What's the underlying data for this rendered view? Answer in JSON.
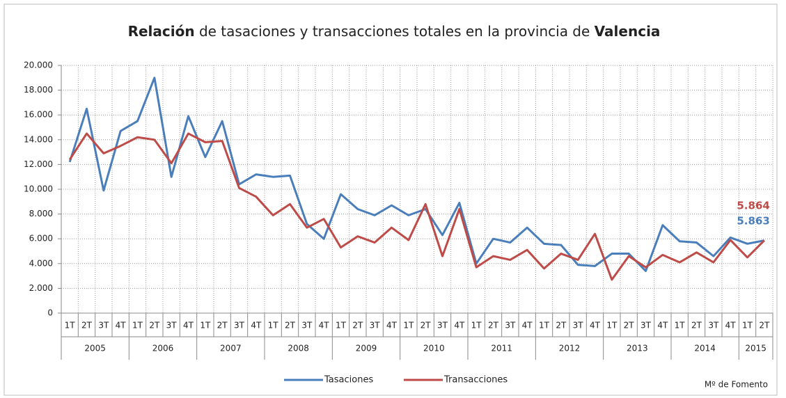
{
  "chart_data": {
    "type": "line",
    "title_parts": [
      "Relación",
      " de tasaciones y transacciones totales en la provincia de ",
      "Valencia"
    ],
    "categories": [
      [
        "2005",
        "1T"
      ],
      [
        "2005",
        "2T"
      ],
      [
        "2005",
        "3T"
      ],
      [
        "2005",
        "4T"
      ],
      [
        "2006",
        "1T"
      ],
      [
        "2006",
        "2T"
      ],
      [
        "2006",
        "3T"
      ],
      [
        "2006",
        "4T"
      ],
      [
        "2007",
        "1T"
      ],
      [
        "2007",
        "2T"
      ],
      [
        "2007",
        "3T"
      ],
      [
        "2007",
        "4T"
      ],
      [
        "2008",
        "1T"
      ],
      [
        "2008",
        "2T"
      ],
      [
        "2008",
        "3T"
      ],
      [
        "2008",
        "4T"
      ],
      [
        "2009",
        "1T"
      ],
      [
        "2009",
        "2T"
      ],
      [
        "2009",
        "3T"
      ],
      [
        "2009",
        "4T"
      ],
      [
        "2010",
        "1T"
      ],
      [
        "2010",
        "2T"
      ],
      [
        "2010",
        "3T"
      ],
      [
        "2010",
        "4T"
      ],
      [
        "2011",
        "1T"
      ],
      [
        "2011",
        "2T"
      ],
      [
        "2011",
        "3T"
      ],
      [
        "2011",
        "4T"
      ],
      [
        "2012",
        "1T"
      ],
      [
        "2012",
        "2T"
      ],
      [
        "2012",
        "3T"
      ],
      [
        "2012",
        "4T"
      ],
      [
        "2013",
        "1T"
      ],
      [
        "2013",
        "2T"
      ],
      [
        "2013",
        "3T"
      ],
      [
        "2013",
        "4T"
      ],
      [
        "2014",
        "1T"
      ],
      [
        "2014",
        "2T"
      ],
      [
        "2014",
        "3T"
      ],
      [
        "2014",
        "4T"
      ],
      [
        "2015",
        "1T"
      ],
      [
        "2015",
        "2T"
      ]
    ],
    "series": [
      {
        "name": "Tasaciones",
        "color": "#4a7ebb",
        "values": [
          12200,
          16500,
          9900,
          14700,
          15500,
          19000,
          11000,
          15900,
          12600,
          15500,
          10400,
          11200,
          11000,
          11100,
          7200,
          6000,
          9600,
          8400,
          7900,
          8700,
          7900,
          8400,
          6300,
          8900,
          4000,
          6000,
          5700,
          6900,
          5600,
          5500,
          3900,
          3800,
          4800,
          4800,
          3400,
          7100,
          5800,
          5700,
          4600,
          6100,
          5600,
          5863
        ],
        "value_labels": [
          null,
          null,
          null,
          null,
          null,
          null,
          null,
          null,
          null,
          null,
          null,
          null,
          null,
          null,
          null,
          null,
          null,
          null,
          null,
          null,
          null,
          null,
          null,
          null,
          null,
          null,
          null,
          null,
          null,
          null,
          null,
          null,
          null,
          null,
          null,
          null,
          null,
          null,
          null,
          null,
          null,
          "5.863"
        ]
      },
      {
        "name": "Transacciones",
        "color": "#be4b48",
        "values": [
          12400,
          14500,
          12900,
          13500,
          14200,
          14000,
          12100,
          14500,
          13800,
          13900,
          10100,
          9400,
          7900,
          8800,
          6900,
          7600,
          5300,
          6200,
          5700,
          6900,
          5900,
          8800,
          4600,
          8400,
          3700,
          4600,
          4300,
          5100,
          3600,
          4800,
          4300,
          6400,
          2700,
          4600,
          3700,
          4700,
          4100,
          4900,
          4100,
          5900,
          4500,
          5864
        ],
        "value_labels": [
          null,
          null,
          null,
          null,
          null,
          null,
          null,
          null,
          null,
          null,
          null,
          null,
          null,
          null,
          null,
          null,
          null,
          null,
          null,
          null,
          null,
          null,
          null,
          null,
          null,
          null,
          null,
          null,
          null,
          null,
          null,
          null,
          null,
          null,
          null,
          null,
          null,
          null,
          null,
          null,
          null,
          "5.864"
        ]
      }
    ],
    "ylim": [
      0,
      20000
    ],
    "yticks": [
      0,
      {
        "value": 2000,
        "label": "2.000"
      },
      {
        "value": 4000,
        "label": "4.000"
      },
      {
        "value": 6000,
        "label": "6.000"
      },
      {
        "value": 8000,
        "label": "8.000"
      },
      {
        "value": 10000,
        "label": "10.000"
      },
      {
        "value": 12000,
        "label": "12.000"
      },
      {
        "value": 14000,
        "label": "14.000"
      },
      {
        "value": 16000,
        "label": "16.000"
      },
      {
        "value": 18000,
        "label": "18.000"
      },
      {
        "value": 20000,
        "label": "20.000"
      }
    ],
    "grid": true,
    "legend": "bottom",
    "source": "Mº de Fomento"
  }
}
